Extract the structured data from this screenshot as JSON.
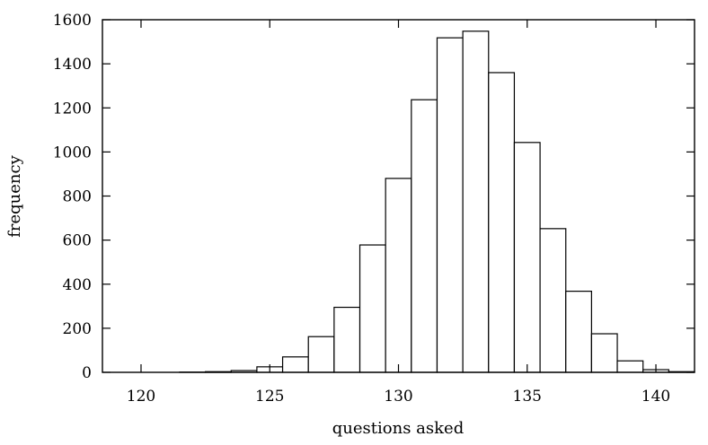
{
  "chart_data": {
    "type": "bar",
    "title": "",
    "xlabel": "questions asked",
    "ylabel": "frequency",
    "xlim": [
      118.5,
      141.5
    ],
    "ylim": [
      0,
      1600
    ],
    "xticks": [
      120,
      125,
      130,
      135,
      140
    ],
    "yticks": [
      0,
      200,
      400,
      600,
      800,
      1000,
      1200,
      1400,
      1600
    ],
    "grid": false,
    "bin_width": 1,
    "bins": [
      {
        "x": 120,
        "value": 0
      },
      {
        "x": 121,
        "value": 0
      },
      {
        "x": 122,
        "value": 1
      },
      {
        "x": 123,
        "value": 3
      },
      {
        "x": 124,
        "value": 8
      },
      {
        "x": 125,
        "value": 25
      },
      {
        "x": 126,
        "value": 70
      },
      {
        "x": 127,
        "value": 162
      },
      {
        "x": 128,
        "value": 295
      },
      {
        "x": 129,
        "value": 578
      },
      {
        "x": 130,
        "value": 880
      },
      {
        "x": 131,
        "value": 1237
      },
      {
        "x": 132,
        "value": 1518
      },
      {
        "x": 133,
        "value": 1548
      },
      {
        "x": 134,
        "value": 1360
      },
      {
        "x": 135,
        "value": 1043
      },
      {
        "x": 136,
        "value": 652
      },
      {
        "x": 137,
        "value": 368
      },
      {
        "x": 138,
        "value": 175
      },
      {
        "x": 139,
        "value": 52
      },
      {
        "x": 140,
        "value": 12
      },
      {
        "x": 141,
        "value": 3
      }
    ]
  }
}
